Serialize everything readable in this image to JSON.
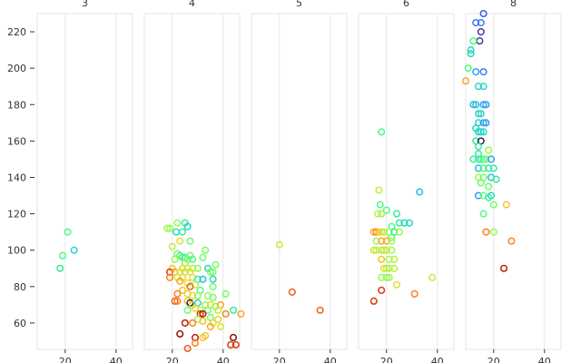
{
  "chart_data": {
    "type": "scatter",
    "title": "",
    "xlabel": "",
    "ylabel": "",
    "xlim": [
      9,
      46.5
    ],
    "ylim": [
      45.5,
      230
    ],
    "x_ticks": [
      20,
      40
    ],
    "y_ticks": [
      60,
      80,
      100,
      120,
      140,
      160,
      180,
      200,
      220
    ],
    "grid": true,
    "color_scale": "turbo",
    "point_format": [
      "x",
      "y",
      "color_value"
    ],
    "facets": [
      {
        "label": "3",
        "points": [
          [
            18,
            90,
            0.35
          ],
          [
            19,
            97,
            0.4
          ],
          [
            21,
            110,
            0.4
          ],
          [
            23.5,
            100,
            0.3
          ]
        ]
      },
      {
        "label": "4",
        "points": [
          [
            22,
            115,
            0.5
          ],
          [
            25,
            115,
            0.35
          ],
          [
            26,
            113,
            0.3
          ],
          [
            18,
            112,
            0.5
          ],
          [
            19,
            112,
            0.5
          ],
          [
            21.5,
            110,
            0.3
          ],
          [
            24,
            110,
            0.35
          ],
          [
            23,
            105,
            0.6
          ],
          [
            27,
            105,
            0.45
          ],
          [
            20,
            102,
            0.55
          ],
          [
            33,
            100,
            0.45
          ],
          [
            22,
            98,
            0.45
          ],
          [
            23,
            97,
            0.4
          ],
          [
            24,
            96,
            0.4
          ],
          [
            25,
            96,
            0.35
          ],
          [
            27,
            97,
            0.45
          ],
          [
            32,
            96,
            0.45
          ],
          [
            21,
            95,
            0.5
          ],
          [
            26,
            95,
            0.45
          ],
          [
            28,
            95,
            0.4
          ],
          [
            25,
            93,
            0.5
          ],
          [
            37,
            92,
            0.45
          ],
          [
            20,
            90,
            0.65
          ],
          [
            24,
            90,
            0.6
          ],
          [
            26,
            90,
            0.55
          ],
          [
            28,
            90,
            0.55
          ],
          [
            30,
            90,
            0.5
          ],
          [
            34,
            90,
            0.3
          ],
          [
            19,
            88,
            0.85
          ],
          [
            21,
            88,
            0.7
          ],
          [
            23,
            88,
            0.6
          ],
          [
            25,
            88,
            0.6
          ],
          [
            27,
            88,
            0.6
          ],
          [
            35,
            88,
            0.45
          ],
          [
            36,
            88,
            0.45
          ],
          [
            19,
            85,
            0.75
          ],
          [
            22,
            85,
            0.55
          ],
          [
            24,
            85,
            0.6
          ],
          [
            28,
            85,
            0.6
          ],
          [
            30,
            84,
            0.35
          ],
          [
            32,
            84,
            0.25
          ],
          [
            36,
            84,
            0.3
          ],
          [
            23,
            83,
            0.7
          ],
          [
            26,
            82,
            0.6
          ],
          [
            29,
            81,
            0.55
          ],
          [
            36,
            80,
            0.45
          ],
          [
            27,
            80,
            0.8
          ],
          [
            24,
            78,
            0.65
          ],
          [
            31,
            78,
            0.4
          ],
          [
            22,
            76,
            0.75
          ],
          [
            26,
            76,
            0.6
          ],
          [
            28,
            75,
            0.6
          ],
          [
            30,
            75,
            0.5
          ],
          [
            34,
            75,
            0.5
          ],
          [
            36,
            74,
            0.45
          ],
          [
            41,
            76,
            0.45
          ],
          [
            26,
            72,
            0.65
          ],
          [
            21,
            72,
            0.8
          ],
          [
            22,
            72,
            0.75
          ],
          [
            27,
            71,
            0.02
          ],
          [
            28,
            70,
            0.6
          ],
          [
            30,
            71,
            0.3
          ],
          [
            33,
            70,
            0.5
          ],
          [
            35,
            70,
            0.6
          ],
          [
            37,
            69,
            0.5
          ],
          [
            39,
            70,
            0.7
          ],
          [
            29,
            68,
            0.6
          ],
          [
            31,
            67,
            0.55
          ],
          [
            34,
            67,
            0.45
          ],
          [
            38,
            67,
            0.55
          ],
          [
            26,
            67,
            0.45
          ],
          [
            44,
            67,
            0.35
          ],
          [
            47,
            65,
            0.7
          ],
          [
            31,
            65,
            0.85
          ],
          [
            32,
            65,
            0.9
          ],
          [
            41,
            65,
            0.75
          ],
          [
            35,
            63,
            0.45
          ],
          [
            38,
            62,
            0.6
          ],
          [
            30,
            62,
            0.5
          ],
          [
            36,
            60,
            0.6
          ],
          [
            28,
            60,
            0.75
          ],
          [
            25,
            60,
            0.9
          ],
          [
            32,
            61,
            0.65
          ],
          [
            35,
            58,
            0.7
          ],
          [
            39,
            58,
            0.6
          ],
          [
            23,
            54,
            0.95
          ],
          [
            29,
            52,
            0.9
          ],
          [
            33,
            53,
            0.65
          ],
          [
            32,
            52,
            0.65
          ],
          [
            44,
            52,
            1.0
          ],
          [
            29,
            49,
            0.75
          ],
          [
            43,
            48,
            0.85
          ],
          [
            45,
            48,
            0.85
          ],
          [
            26,
            46,
            0.8
          ]
        ]
      },
      {
        "label": "5",
        "points": [
          [
            20,
            103,
            0.55
          ],
          [
            25,
            77,
            0.8
          ],
          [
            36,
            67,
            0.8
          ]
        ]
      },
      {
        "label": "6",
        "points": [
          [
            18,
            165,
            0.4
          ],
          [
            17,
            133,
            0.55
          ],
          [
            33,
            132,
            0.25
          ],
          [
            17.5,
            125,
            0.4
          ],
          [
            20,
            122,
            0.4
          ],
          [
            16.5,
            120,
            0.55
          ],
          [
            18,
            120,
            0.5
          ],
          [
            24,
            120,
            0.35
          ],
          [
            25,
            115,
            0.35
          ],
          [
            27,
            115,
            0.3
          ],
          [
            29,
            115,
            0.3
          ],
          [
            22,
            113,
            0.4
          ],
          [
            22,
            107,
            0.45
          ],
          [
            15,
            110,
            0.7
          ],
          [
            16,
            110,
            0.75
          ],
          [
            17,
            110,
            0.65
          ],
          [
            18,
            110,
            0.6
          ],
          [
            19,
            110,
            0.55
          ],
          [
            21,
            110,
            0.5
          ],
          [
            23,
            110,
            0.35
          ],
          [
            25,
            110,
            0.5
          ],
          [
            16,
            105,
            0.5
          ],
          [
            18,
            105,
            0.7
          ],
          [
            20,
            105,
            0.7
          ],
          [
            22,
            105,
            0.5
          ],
          [
            15,
            100,
            0.6
          ],
          [
            16,
            100,
            0.55
          ],
          [
            18,
            100,
            0.5
          ],
          [
            19,
            100,
            0.6
          ],
          [
            20,
            100,
            0.55
          ],
          [
            22,
            100,
            0.5
          ],
          [
            18,
            95,
            0.65
          ],
          [
            21,
            95,
            0.5
          ],
          [
            23,
            95,
            0.55
          ],
          [
            19,
            90,
            0.6
          ],
          [
            20,
            90,
            0.6
          ],
          [
            21,
            90,
            0.5
          ],
          [
            23,
            90,
            0.55
          ],
          [
            18,
            85,
            0.5
          ],
          [
            20,
            85,
            0.5
          ],
          [
            21,
            85,
            0.5
          ],
          [
            38,
            85,
            0.55
          ],
          [
            24,
            81,
            0.6
          ],
          [
            18,
            78,
            0.85
          ],
          [
            31,
            76,
            0.75
          ],
          [
            15,
            72,
            0.85
          ]
        ]
      },
      {
        "label": "8",
        "points": [
          [
            16,
            230,
            0.1
          ],
          [
            13,
            225,
            0.15
          ],
          [
            15,
            225,
            0.15
          ],
          [
            15,
            220,
            0.05
          ],
          [
            14.5,
            215,
            0.05
          ],
          [
            12,
            215,
            0.4
          ],
          [
            11,
            210,
            0.3
          ],
          [
            11,
            208,
            0.3
          ],
          [
            10,
            200,
            0.4
          ],
          [
            13,
            198,
            0.2
          ],
          [
            16,
            198,
            0.15
          ],
          [
            9,
            193,
            0.7
          ],
          [
            14,
            190,
            0.3
          ],
          [
            16,
            190,
            0.3
          ],
          [
            12,
            180,
            0.25
          ],
          [
            13,
            180,
            0.25
          ],
          [
            16,
            180,
            0.2
          ],
          [
            17,
            180,
            0.2
          ],
          [
            14,
            175,
            0.3
          ],
          [
            15,
            175,
            0.3
          ],
          [
            14,
            170,
            0.3
          ],
          [
            16,
            170,
            0.2
          ],
          [
            17,
            170,
            0.2
          ],
          [
            13,
            167,
            0.3
          ],
          [
            14,
            165,
            0.3
          ],
          [
            15,
            165,
            0.3
          ],
          [
            16,
            165,
            0.3
          ],
          [
            13,
            160,
            0.35
          ],
          [
            15,
            160,
            0.02
          ],
          [
            14,
            157,
            0.35
          ],
          [
            14,
            153,
            0.35
          ],
          [
            18,
            155,
            0.5
          ],
          [
            15,
            150,
            0.35
          ],
          [
            12,
            150,
            0.35
          ],
          [
            14,
            150,
            0.35
          ],
          [
            16,
            150,
            0.4
          ],
          [
            17,
            150,
            0.45
          ],
          [
            19,
            150,
            0.2
          ],
          [
            14,
            145,
            0.25
          ],
          [
            16,
            145,
            0.4
          ],
          [
            18,
            145,
            0.35
          ],
          [
            20,
            145,
            0.35
          ],
          [
            14,
            140,
            0.5
          ],
          [
            16,
            140,
            0.45
          ],
          [
            19,
            140,
            0.25
          ],
          [
            21,
            139,
            0.35
          ],
          [
            15,
            137,
            0.45
          ],
          [
            18,
            135,
            0.45
          ],
          [
            14,
            130,
            0.2
          ],
          [
            16,
            130,
            0.45
          ],
          [
            19,
            130,
            0.3
          ],
          [
            18,
            129,
            0.35
          ],
          [
            20,
            125,
            0.45
          ],
          [
            25,
            125,
            0.65
          ],
          [
            16,
            120,
            0.4
          ],
          [
            17,
            110,
            0.75
          ],
          [
            20,
            110,
            0.5
          ],
          [
            27,
            105,
            0.75
          ],
          [
            24,
            90,
            0.9
          ]
        ]
      }
    ]
  }
}
